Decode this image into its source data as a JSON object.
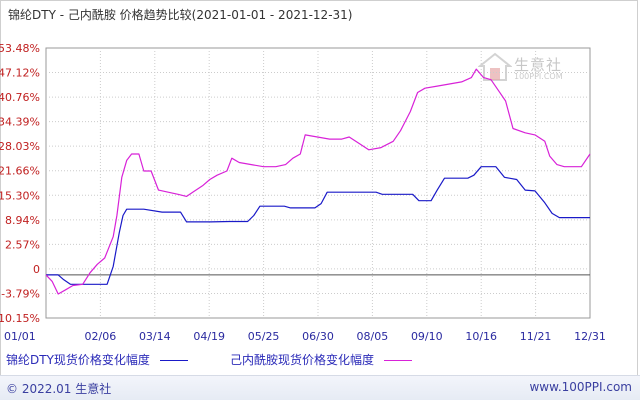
{
  "header": {
    "title": "锦纶DTY - 己内酰胺 价格趋势比较(2021-01-01 - 2021-12-31)"
  },
  "watermark": {
    "name": "生意社",
    "url": "100PPI.COM"
  },
  "footer": {
    "copyright": "© 2022.01 生意社",
    "site": "www.100PPI.com"
  },
  "colors": {
    "series1": "#1a1ac8",
    "series2": "#d822d8",
    "grid": "#cccccc",
    "axis_text": "#c02020",
    "x_text": "#2a2aa0"
  },
  "chart_data": {
    "type": "line",
    "x_ticks": [
      "01/01",
      "02/06",
      "03/14",
      "04/19",
      "05/25",
      "06/30",
      "08/05",
      "09/10",
      "10/16",
      "11/21",
      "12/31"
    ],
    "y_ticks": [
      "53.48%",
      "47.12%",
      "40.76%",
      "34.39%",
      "28.03%",
      "21.66%",
      "15.30%",
      "8.94%",
      "2.57%",
      "0",
      "-3.79%",
      "-10.15%"
    ],
    "ylim": [
      -10.15,
      53.48
    ],
    "grid": true,
    "series": [
      {
        "name": "锦纶DTY现货价格变化幅度",
        "color": "#1a1ac8",
        "points": [
          [
            0,
            0
          ],
          [
            10,
            0
          ],
          [
            14,
            -1
          ],
          [
            20,
            -2.2
          ],
          [
            30,
            -2.2
          ],
          [
            50,
            -2.2
          ],
          [
            55,
            2
          ],
          [
            60,
            10
          ],
          [
            63,
            14
          ],
          [
            66,
            15.5
          ],
          [
            80,
            15.5
          ],
          [
            95,
            14.8
          ],
          [
            110,
            14.8
          ],
          [
            115,
            12.5
          ],
          [
            135,
            12.5
          ],
          [
            150,
            12.6
          ],
          [
            165,
            12.6
          ],
          [
            170,
            14
          ],
          [
            175,
            16.2
          ],
          [
            195,
            16.2
          ],
          [
            200,
            15.8
          ],
          [
            220,
            15.8
          ],
          [
            225,
            16.8
          ],
          [
            230,
            19.5
          ],
          [
            270,
            19.5
          ],
          [
            275,
            19
          ],
          [
            300,
            19
          ],
          [
            305,
            17.5
          ],
          [
            315,
            17.5
          ],
          [
            320,
            20
          ],
          [
            326,
            22.8
          ],
          [
            345,
            22.8
          ],
          [
            350,
            23.5
          ],
          [
            356,
            25.5
          ],
          [
            368,
            25.5
          ],
          [
            375,
            23
          ],
          [
            385,
            22.5
          ],
          [
            392,
            20
          ],
          [
            400,
            19.8
          ],
          [
            408,
            17
          ],
          [
            414,
            14.5
          ],
          [
            420,
            13.5
          ],
          [
            445,
            13.5
          ]
        ]
      },
      {
        "name": "己内酰胺现货价格变化幅度",
        "color": "#d822d8",
        "points": [
          [
            0,
            0
          ],
          [
            5,
            -1.5
          ],
          [
            10,
            -4.5
          ],
          [
            16,
            -3.5
          ],
          [
            22,
            -2.5
          ],
          [
            30,
            -2.2
          ],
          [
            36,
            0.5
          ],
          [
            42,
            2.5
          ],
          [
            48,
            4
          ],
          [
            55,
            9
          ],
          [
            58,
            14
          ],
          [
            62,
            23
          ],
          [
            66,
            27
          ],
          [
            70,
            28.5
          ],
          [
            76,
            28.5
          ],
          [
            80,
            24.5
          ],
          [
            86,
            24.5
          ],
          [
            92,
            20
          ],
          [
            100,
            19.5
          ],
          [
            108,
            19
          ],
          [
            115,
            18.5
          ],
          [
            120,
            19.5
          ],
          [
            128,
            21
          ],
          [
            134,
            22.5
          ],
          [
            140,
            23.5
          ],
          [
            148,
            24.5
          ],
          [
            152,
            27.5
          ],
          [
            158,
            26.5
          ],
          [
            168,
            26
          ],
          [
            178,
            25.5
          ],
          [
            188,
            25.5
          ],
          [
            196,
            26
          ],
          [
            202,
            27.5
          ],
          [
            208,
            28.5
          ],
          [
            212,
            33
          ],
          [
            222,
            32.5
          ],
          [
            232,
            32
          ],
          [
            242,
            32
          ],
          [
            248,
            32.5
          ],
          [
            256,
            31
          ],
          [
            264,
            29.5
          ],
          [
            274,
            30
          ],
          [
            284,
            31.5
          ],
          [
            290,
            34
          ],
          [
            298,
            38.5
          ],
          [
            304,
            43
          ],
          [
            310,
            44
          ],
          [
            320,
            44.5
          ],
          [
            330,
            45
          ],
          [
            340,
            45.5
          ],
          [
            348,
            46.5
          ],
          [
            352,
            48.5
          ],
          [
            358,
            46.5
          ],
          [
            364,
            46
          ],
          [
            370,
            43.5
          ],
          [
            376,
            41
          ],
          [
            382,
            34.5
          ],
          [
            392,
            33.5
          ],
          [
            400,
            33
          ],
          [
            408,
            31.5
          ],
          [
            412,
            28
          ],
          [
            418,
            26
          ],
          [
            424,
            25.5
          ],
          [
            438,
            25.5
          ],
          [
            445,
            28.5
          ]
        ]
      }
    ]
  }
}
